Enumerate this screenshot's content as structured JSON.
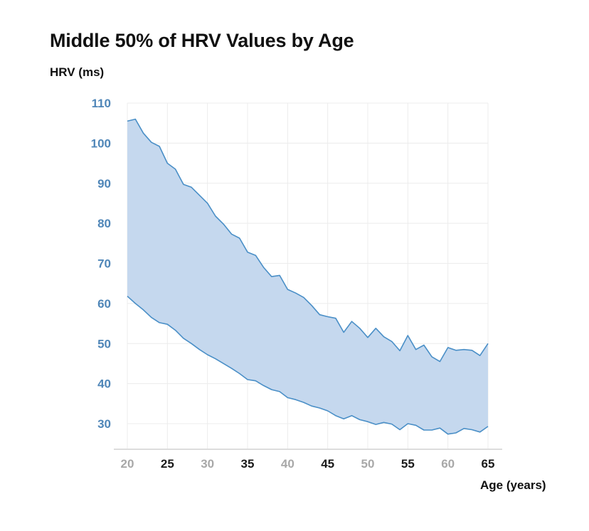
{
  "chart_data": {
    "type": "area",
    "title": "Middle 50% of HRV Values by Age",
    "ylabel": "HRV (ms)",
    "xlabel": "Age (years)",
    "xlim": [
      20,
      65
    ],
    "ylim": [
      25,
      110
    ],
    "grid": true,
    "x_ticks": [
      20,
      25,
      30,
      35,
      40,
      45,
      50,
      55,
      60,
      65
    ],
    "x_ticks_emphasized": [
      25,
      35,
      45,
      55,
      65
    ],
    "y_ticks": [
      110,
      100,
      90,
      80,
      70,
      60,
      50,
      40,
      30
    ],
    "x": [
      20,
      21,
      22,
      23,
      24,
      25,
      26,
      27,
      28,
      29,
      30,
      31,
      32,
      33,
      34,
      35,
      36,
      37,
      38,
      39,
      40,
      41,
      42,
      43,
      44,
      45,
      46,
      47,
      48,
      49,
      50,
      51,
      52,
      53,
      54,
      55,
      56,
      57,
      58,
      59,
      60,
      61,
      62,
      63,
      64,
      65
    ],
    "series": [
      {
        "values": [
          105.5,
          106,
          102.5,
          100.2,
          99.2,
          95,
          93.5,
          89.7,
          89,
          87,
          85,
          81.8,
          79.8,
          77.3,
          76.3,
          72.8,
          72,
          69,
          66.7,
          67,
          63.5,
          62.6,
          61.5,
          59.5,
          57.2,
          56.7,
          56.3,
          52.8,
          55.5,
          53.8,
          51.5,
          53.8,
          51.7,
          50.5,
          48.2,
          52,
          48.5,
          49.6,
          46.7,
          45.5,
          49,
          48.3,
          48.5,
          48.3,
          47,
          50
        ],
        "role": "upper"
      },
      {
        "values": [
          61.8,
          60,
          58.4,
          56.5,
          55.2,
          54.8,
          53.3,
          51.3,
          50,
          48.5,
          47.2,
          46.2,
          45,
          43.8,
          42.5,
          41,
          40.7,
          39.5,
          38.5,
          38,
          36.5,
          36,
          35.3,
          34.4,
          33.9,
          33.2,
          32,
          31.2,
          32,
          31,
          30.5,
          29.8,
          30.3,
          29.9,
          28.5,
          30,
          29.6,
          28.4,
          28.4,
          28.9,
          27.4,
          27.7,
          28.8,
          28.5,
          27.9,
          29.3
        ],
        "role": "lower"
      }
    ],
    "colors": {
      "line": "#4a8fc7",
      "fill": "#c5d8ee",
      "grid": "#ececec",
      "axis": "#dcdcdc",
      "tick_y": "#4f86b8",
      "tick_x_emph": "#1a1a1a",
      "tick_x_muted": "#a8a8a8"
    }
  }
}
